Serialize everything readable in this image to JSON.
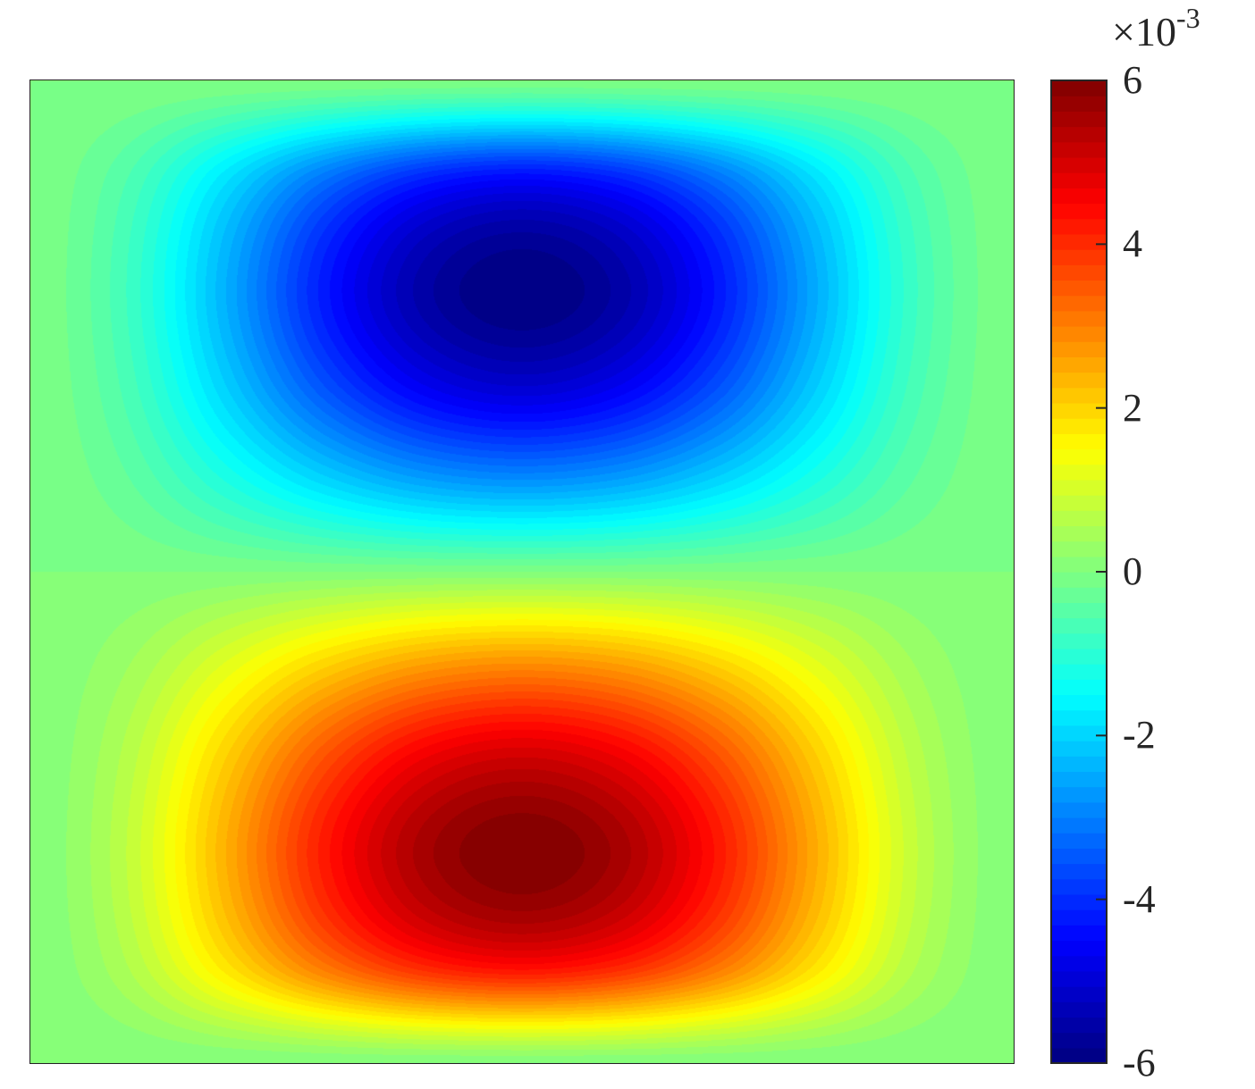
{
  "chart_data": {
    "type": "heatmap",
    "style": "filled-contour",
    "colormap": "jet",
    "levels": 64,
    "grid": "off",
    "z_units_multiplier_label": "×10",
    "z_units_exponent": "-3",
    "clim": [
      -6,
      6
    ],
    "colorbar": {
      "placement": "right",
      "ticks": [
        6,
        4,
        2,
        0,
        -2,
        -4,
        -6
      ],
      "tick_labels": [
        "6",
        "4",
        "2",
        "0",
        "-2",
        "-4",
        "-6"
      ]
    },
    "z_grid_note_rows": "rows ordered top to bottom, columns left to right, values in ×10^-3",
    "z": [
      [
        0,
        0,
        0,
        0,
        0,
        0,
        0,
        0,
        0,
        0,
        0
      ],
      [
        0,
        -0.58,
        -1.84,
        -3.17,
        -4.14,
        -4.49,
        -4.14,
        -3.17,
        -1.84,
        -0.58,
        0
      ],
      [
        0,
        -0.78,
        -2.45,
        -4.23,
        -5.52,
        -5.99,
        -5.52,
        -4.23,
        -2.45,
        -0.78,
        0
      ],
      [
        0,
        -0.68,
        -2.15,
        -3.7,
        -4.83,
        -5.24,
        -4.83,
        -3.7,
        -2.15,
        -0.68,
        0
      ],
      [
        0,
        -0.39,
        -1.23,
        -2.11,
        -2.76,
        -2.99,
        -2.76,
        -2.11,
        -1.23,
        -0.39,
        0
      ],
      [
        0,
        0,
        0,
        0,
        0,
        0,
        0,
        0,
        0,
        0,
        0
      ],
      [
        0,
        0.39,
        1.23,
        2.11,
        2.76,
        2.99,
        2.76,
        2.11,
        1.23,
        0.39,
        0
      ],
      [
        0,
        0.68,
        2.15,
        3.7,
        4.83,
        5.24,
        4.83,
        3.7,
        2.15,
        0.68,
        0
      ],
      [
        0,
        0.78,
        2.45,
        4.23,
        5.52,
        5.99,
        5.52,
        4.23,
        2.45,
        0.78,
        0
      ],
      [
        0,
        0.58,
        1.84,
        3.17,
        4.14,
        4.49,
        4.14,
        3.17,
        1.84,
        0.58,
        0
      ],
      [
        0,
        0,
        0,
        0,
        0,
        0,
        0,
        0,
        0,
        0,
        0
      ]
    ]
  }
}
